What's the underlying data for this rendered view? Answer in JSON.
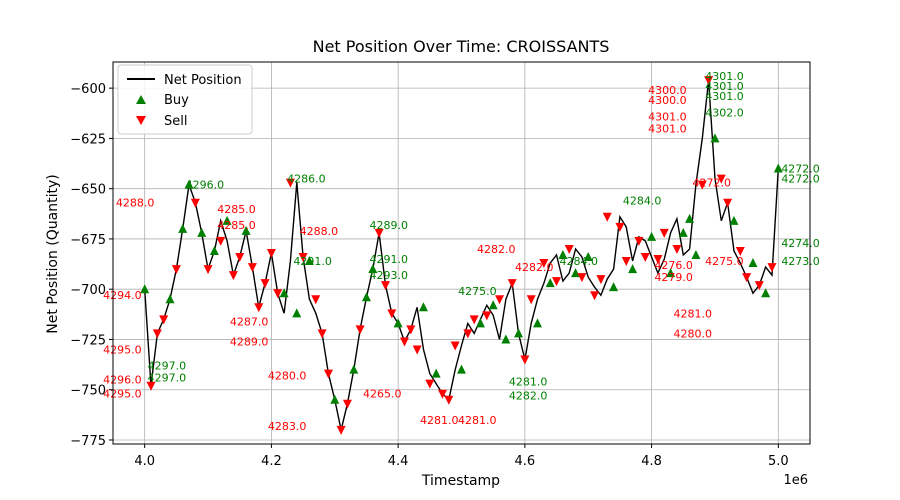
{
  "chart_data": {
    "type": "line",
    "title": "Net Position Over Time: CROISSANTS",
    "xlabel": "Timestamp",
    "ylabel": "Net Position (Quantity)",
    "x_offset_label": "1e6",
    "xlim": [
      3950000,
      5050000
    ],
    "ylim": [
      -777,
      -587
    ],
    "xticks": [
      4000000,
      4200000,
      4400000,
      4600000,
      4800000,
      5000000
    ],
    "xtick_labels": [
      "4.0",
      "4.2",
      "4.4",
      "4.6",
      "4.8",
      "5.0"
    ],
    "yticks": [
      -775,
      -750,
      -725,
      -700,
      -675,
      -650,
      -625,
      -600
    ],
    "ytick_labels": [
      "−775",
      "−750",
      "−725",
      "−700",
      "−675",
      "−650",
      "−625",
      "−600"
    ],
    "grid": true,
    "legend_position": "upper-left",
    "colors": {
      "line": "#000000",
      "buy": "#008000",
      "sell": "#ff0000"
    },
    "series": [
      {
        "name": "Net Position",
        "kind": "line"
      },
      {
        "name": "Buy",
        "kind": "marker",
        "marker": "triangle-up"
      },
      {
        "name": "Sell",
        "kind": "marker",
        "marker": "triangle-down"
      }
    ],
    "position": {
      "x": [
        4000000,
        4010000,
        4020000,
        4030000,
        4040000,
        4050000,
        4060000,
        4070000,
        4080000,
        4090000,
        4100000,
        4110000,
        4120000,
        4130000,
        4140000,
        4150000,
        4160000,
        4170000,
        4180000,
        4190000,
        4200000,
        4210000,
        4220000,
        4230000,
        4240000,
        4250000,
        4260000,
        4270000,
        4280000,
        4290000,
        4300000,
        4310000,
        4320000,
        4330000,
        4340000,
        4350000,
        4360000,
        4370000,
        4380000,
        4390000,
        4400000,
        4410000,
        4420000,
        4430000,
        4440000,
        4450000,
        4460000,
        4470000,
        4480000,
        4490000,
        4500000,
        4510000,
        4520000,
        4530000,
        4540000,
        4550000,
        4560000,
        4570000,
        4580000,
        4590000,
        4600000,
        4610000,
        4620000,
        4630000,
        4640000,
        4650000,
        4660000,
        4670000,
        4680000,
        4690000,
        4700000,
        4710000,
        4720000,
        4730000,
        4740000,
        4750000,
        4760000,
        4770000,
        4780000,
        4790000,
        4800000,
        4810000,
        4820000,
        4830000,
        4840000,
        4850000,
        4860000,
        4870000,
        4880000,
        4890000,
        4900000,
        4910000,
        4920000,
        4930000,
        4940000,
        4950000,
        4960000,
        4970000,
        4980000,
        4990000,
        5000000
      ],
      "y": [
        -700,
        -748,
        -722,
        -715,
        -705,
        -690,
        -670,
        -648,
        -657,
        -672,
        -690,
        -681,
        -666,
        -676,
        -693,
        -684,
        -671,
        -689,
        -709,
        -697,
        -682,
        -702,
        -712,
        -686,
        -647,
        -684,
        -705,
        -712,
        -722,
        -742,
        -755,
        -770,
        -757,
        -740,
        -720,
        -704,
        -690,
        -672,
        -698,
        -712,
        -717,
        -726,
        -720,
        -709,
        -730,
        -742,
        -747,
        -752,
        -755,
        -740,
        -728,
        -717,
        -722,
        -715,
        -708,
        -713,
        -725,
        -705,
        -697,
        -722,
        -735,
        -717,
        -705,
        -697,
        -687,
        -683,
        -696,
        -692,
        -680,
        -684,
        -694,
        -699,
        -703,
        -695,
        -690,
        -664,
        -669,
        -686,
        -674,
        -676,
        -684,
        -692,
        -685,
        -672,
        -665,
        -683,
        -680,
        -648,
        -625,
        -596,
        -645,
        -666,
        -657,
        -681,
        -687,
        -694,
        -702,
        -698,
        -689,
        -693,
        -640
      ]
    },
    "buy_points": {
      "x": [
        4000000,
        4040000,
        4060000,
        4070000,
        4090000,
        4110000,
        4130000,
        4160000,
        4220000,
        4240000,
        4260000,
        4300000,
        4330000,
        4350000,
        4360000,
        4400000,
        4440000,
        4460000,
        4500000,
        4530000,
        4550000,
        4570000,
        4590000,
        4620000,
        4640000,
        4660000,
        4680000,
        4700000,
        4740000,
        4770000,
        4800000,
        4830000,
        4850000,
        4860000,
        4870000,
        4900000,
        4930000,
        4960000,
        4980000,
        5000000
      ],
      "y": [
        -700,
        -705,
        -670,
        -648,
        -672,
        -681,
        -666,
        -671,
        -702,
        -712,
        -686,
        -755,
        -740,
        -704,
        -690,
        -717,
        -709,
        -742,
        -740,
        -717,
        -708,
        -725,
        -722,
        -717,
        -697,
        -683,
        -692,
        -684,
        -699,
        -690,
        -674,
        -692,
        -672,
        -665,
        -683,
        -625,
        -666,
        -687,
        -702,
        -640
      ]
    },
    "sell_points": {
      "x": [
        4010000,
        4020000,
        4030000,
        4050000,
        4080000,
        4100000,
        4120000,
        4140000,
        4150000,
        4170000,
        4180000,
        4190000,
        4200000,
        4210000,
        4230000,
        4250000,
        4270000,
        4280000,
        4290000,
        4310000,
        4320000,
        4340000,
        4370000,
        4380000,
        4390000,
        4410000,
        4420000,
        4430000,
        4450000,
        4470000,
        4480000,
        4490000,
        4510000,
        4520000,
        4540000,
        4560000,
        4580000,
        4600000,
        4610000,
        4630000,
        4650000,
        4670000,
        4690000,
        4710000,
        4720000,
        4730000,
        4750000,
        4760000,
        4780000,
        4790000,
        4810000,
        4820000,
        4840000,
        4880000,
        4890000,
        4910000,
        4920000,
        4940000,
        4950000,
        4970000,
        4990000
      ],
      "y": [
        -748,
        -722,
        -715,
        -690,
        -657,
        -690,
        -676,
        -693,
        -684,
        -689,
        -709,
        -697,
        -682,
        -702,
        -647,
        -684,
        -705,
        -722,
        -742,
        -770,
        -757,
        -720,
        -672,
        -698,
        -712,
        -726,
        -720,
        -730,
        -747,
        -752,
        -755,
        -728,
        -722,
        -715,
        -713,
        -705,
        -697,
        -735,
        -705,
        -687,
        -696,
        -680,
        -694,
        -703,
        -695,
        -664,
        -669,
        -686,
        -676,
        -684,
        -685,
        -672,
        -680,
        -648,
        -596,
        -645,
        -657,
        -681,
        -694,
        -698,
        -689
      ]
    },
    "annotations": [
      {
        "text": "4296.0",
        "x": 4060000,
        "y": -648,
        "side": "buy"
      },
      {
        "text": "4286.0",
        "x": 4220000,
        "y": -645,
        "side": "buy"
      },
      {
        "text": "4289.0",
        "x": 4350000,
        "y": -668,
        "side": "buy"
      },
      {
        "text": "4301.0",
        "x": 4880000,
        "y": -594,
        "side": "buy"
      },
      {
        "text": "4301.0",
        "x": 4880000,
        "y": -599,
        "side": "buy"
      },
      {
        "text": "4301.0",
        "x": 4880000,
        "y": -604,
        "side": "buy"
      },
      {
        "text": "4302.0",
        "x": 4880000,
        "y": -612,
        "side": "buy"
      },
      {
        "text": "4272.0",
        "x": 5000000,
        "y": -640,
        "side": "buy"
      },
      {
        "text": "4272.0",
        "x": 5000000,
        "y": -645,
        "side": "buy"
      },
      {
        "text": "4274.0",
        "x": 5000000,
        "y": -677,
        "side": "buy"
      },
      {
        "text": "4273.0",
        "x": 5000000,
        "y": -686,
        "side": "buy"
      },
      {
        "text": "4297.0",
        "x": 4000000,
        "y": -738,
        "side": "buy"
      },
      {
        "text": "4297.0",
        "x": 4000000,
        "y": -744,
        "side": "buy"
      },
      {
        "text": "4275.0",
        "x": 4490000,
        "y": -701,
        "side": "buy"
      },
      {
        "text": "4281.0",
        "x": 4570000,
        "y": -746,
        "side": "buy"
      },
      {
        "text": "4282.0",
        "x": 4570000,
        "y": -753,
        "side": "buy"
      },
      {
        "text": "4284.0",
        "x": 4650000,
        "y": -686,
        "side": "buy"
      },
      {
        "text": "4284.0",
        "x": 4750000,
        "y": -656,
        "side": "buy"
      },
      {
        "text": "4291.0",
        "x": 4230000,
        "y": -686,
        "side": "buy"
      },
      {
        "text": "4291.0",
        "x": 4350000,
        "y": -685,
        "side": "buy"
      },
      {
        "text": "4293.0",
        "x": 4350000,
        "y": -693,
        "side": "buy"
      },
      {
        "text": "4295.0",
        "x": 4000000,
        "y": -752,
        "side": "sell"
      },
      {
        "text": "4296.0",
        "x": 4000000,
        "y": -745,
        "side": "sell"
      },
      {
        "text": "4295.0",
        "x": 4000000,
        "y": -730,
        "side": "sell"
      },
      {
        "text": "4294.0",
        "x": 4000000,
        "y": -703,
        "side": "sell"
      },
      {
        "text": "4288.0",
        "x": 4020000,
        "y": -657,
        "side": "sell"
      },
      {
        "text": "4285.0",
        "x": 4180000,
        "y": -660,
        "side": "sell"
      },
      {
        "text": "4285.0",
        "x": 4180000,
        "y": -668,
        "side": "sell"
      },
      {
        "text": "4287.0",
        "x": 4200000,
        "y": -716,
        "side": "sell"
      },
      {
        "text": "4289.0",
        "x": 4200000,
        "y": -726,
        "side": "sell"
      },
      {
        "text": "4280.0",
        "x": 4260000,
        "y": -743,
        "side": "sell"
      },
      {
        "text": "4283.0",
        "x": 4260000,
        "y": -768,
        "side": "sell"
      },
      {
        "text": "4288.0",
        "x": 4310000,
        "y": -671,
        "side": "sell"
      },
      {
        "text": "4265.0",
        "x": 4410000,
        "y": -752,
        "side": "sell"
      },
      {
        "text": "4281.0",
        "x": 4500000,
        "y": -765,
        "side": "sell"
      },
      {
        "text": "4281.0",
        "x": 4560000,
        "y": -765,
        "side": "sell"
      },
      {
        "text": "4282.0",
        "x": 4590000,
        "y": -680,
        "side": "sell"
      },
      {
        "text": "4282.0",
        "x": 4650000,
        "y": -689,
        "side": "sell"
      },
      {
        "text": "4300.0",
        "x": 4860000,
        "y": -601,
        "side": "sell"
      },
      {
        "text": "4300.0",
        "x": 4860000,
        "y": -606,
        "side": "sell"
      },
      {
        "text": "4301.0",
        "x": 4860000,
        "y": -614,
        "side": "sell"
      },
      {
        "text": "4301.0",
        "x": 4860000,
        "y": -620,
        "side": "sell"
      },
      {
        "text": "4276.0",
        "x": 4870000,
        "y": -688,
        "side": "sell"
      },
      {
        "text": "4279.0",
        "x": 4870000,
        "y": -694,
        "side": "sell"
      },
      {
        "text": "4272.0",
        "x": 4930000,
        "y": -647,
        "side": "sell"
      },
      {
        "text": "4275.0",
        "x": 4950000,
        "y": -686,
        "side": "sell"
      },
      {
        "text": "4280.0",
        "x": 4900000,
        "y": -722,
        "side": "sell"
      },
      {
        "text": "4281.0",
        "x": 4900000,
        "y": -712,
        "side": "sell"
      }
    ]
  }
}
